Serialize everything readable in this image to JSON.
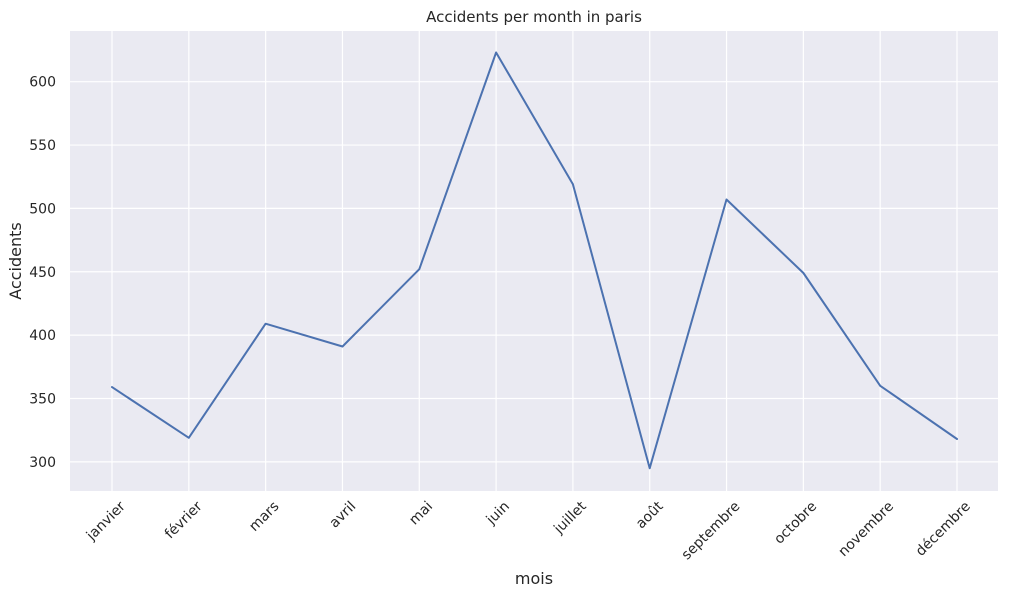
{
  "colors": {
    "background": "#ffffff",
    "plot_background": "#eaeaf2",
    "grid": "#ffffff",
    "line": "#4c72b0",
    "text": "#262626"
  },
  "chart_data": {
    "type": "line",
    "title": "Accidents per month in paris",
    "xlabel": "mois",
    "ylabel": "Accidents",
    "categories": [
      "janvier",
      "février",
      "mars",
      "avril",
      "mai",
      "juin",
      "juillet",
      "août",
      "septembre",
      "octobre",
      "novembre",
      "décembre"
    ],
    "series": [
      {
        "values": [
          359,
          319,
          409,
          391,
          452,
          623,
          519,
          295,
          507,
          449,
          360,
          318
        ]
      }
    ],
    "ylim": [
      277,
      640
    ],
    "yticks": [
      300,
      350,
      400,
      450,
      500,
      550,
      600
    ],
    "grid": true,
    "legend": "none"
  }
}
